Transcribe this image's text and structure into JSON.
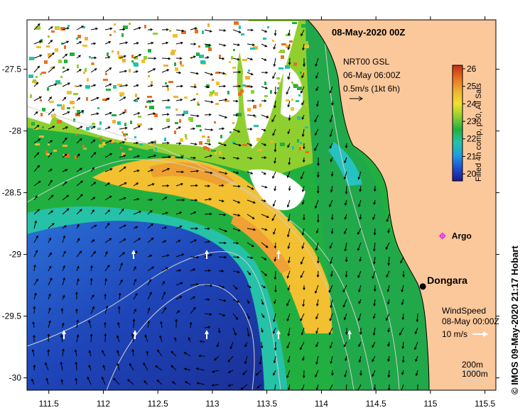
{
  "title": "08-May-2020 00Z",
  "credit": "© IMOS 09-May-2020 21:17 Hobart",
  "colors": {
    "land": "#fbc89b",
    "cloud": "#ffffff",
    "coast": "#000000",
    "isobath": "#cfcfcf"
  },
  "current_legend": {
    "line1": "NRT00 GSL",
    "line2": "06-May 06:00Z",
    "line3": "0.5m/s (1kt 6h)"
  },
  "wind_legend": {
    "line1": "WindSpeed",
    "line2": "08-May 00:00Z",
    "line3": "10 m/s"
  },
  "depth_legend": {
    "line1": "200m",
    "line2": "1000m"
  },
  "markers": [
    {
      "name": "Dongara",
      "lon": 114.93,
      "lat": -29.26,
      "symbol": "filled-circle",
      "color": "#000000"
    },
    {
      "name": "Argo",
      "lon": 115.11,
      "lat": -28.85,
      "symbol": "star",
      "color": "#e020e0"
    }
  ],
  "colorbar": {
    "title": "Filled 4h comp, p50, All Sats",
    "min": 19.6,
    "max": 26.2,
    "ticks": [
      "20",
      "21",
      "22",
      "23",
      "24",
      "25",
      "26"
    ],
    "stops": [
      "#1a1a8c",
      "#1f4fd0",
      "#1e9ee0",
      "#25c2a8",
      "#21b040",
      "#8fd030",
      "#f0e030",
      "#f2b030",
      "#e87020",
      "#c03010"
    ]
  },
  "axes": {
    "x_range": [
      111.3,
      115.6
    ],
    "y_range": [
      -30.1,
      -27.1
    ],
    "x_ticks": [
      "111.5",
      "112",
      "112.5",
      "113",
      "113.5",
      "114",
      "114.5",
      "115",
      "115.5"
    ],
    "x_tick_values": [
      111.5,
      112,
      112.5,
      113,
      113.5,
      114,
      114.5,
      115,
      115.5
    ],
    "y_ticks": [
      "-27.5",
      "-28",
      "-28.5",
      "-29",
      "-29.5",
      "-30"
    ],
    "y_tick_values": [
      -27.5,
      -28,
      -28.5,
      -29,
      -29.5,
      -30
    ]
  }
}
